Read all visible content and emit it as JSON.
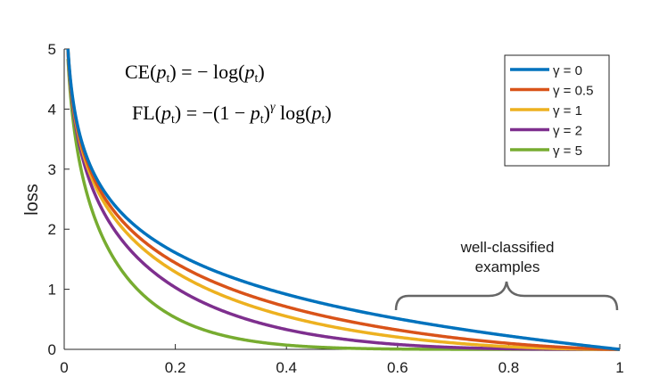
{
  "chart_data": {
    "type": "line",
    "xlabel": "",
    "ylabel": "loss",
    "xlim": [
      0,
      1
    ],
    "ylim": [
      0,
      5
    ],
    "x_ticks": [
      "0",
      "0.2",
      "0.4",
      "0.6",
      "0.8",
      "1"
    ],
    "y_ticks": [
      "0",
      "1",
      "2",
      "3",
      "4",
      "5"
    ],
    "grid": false,
    "legend_placement": "top-right",
    "function": "loss = -(1 - p)^gamma * log(p)",
    "series": [
      {
        "name": "γ = 0",
        "gamma": 0,
        "color": "#0072BD"
      },
      {
        "name": "γ = 0.5",
        "gamma": 0.5,
        "color": "#D95319"
      },
      {
        "name": "γ = 1",
        "gamma": 1,
        "color": "#EDB120"
      },
      {
        "name": "γ = 2",
        "gamma": 2,
        "color": "#7E2F8E"
      },
      {
        "name": "γ = 5",
        "gamma": 5,
        "color": "#77AC30"
      }
    ],
    "equations": {
      "ce_lhs": "CE(",
      "ce_rhs": ") = − log(",
      "fl_lhs": "FL(",
      "fl_mid": ") = −(1 − ",
      "fl_exp": "γ",
      "fl_log": " log(",
      "p": "p",
      "t": "t",
      "close": ")"
    },
    "annotation": {
      "line1": "well-classified",
      "line2": "examples",
      "x_range": [
        0.6,
        1
      ]
    }
  }
}
